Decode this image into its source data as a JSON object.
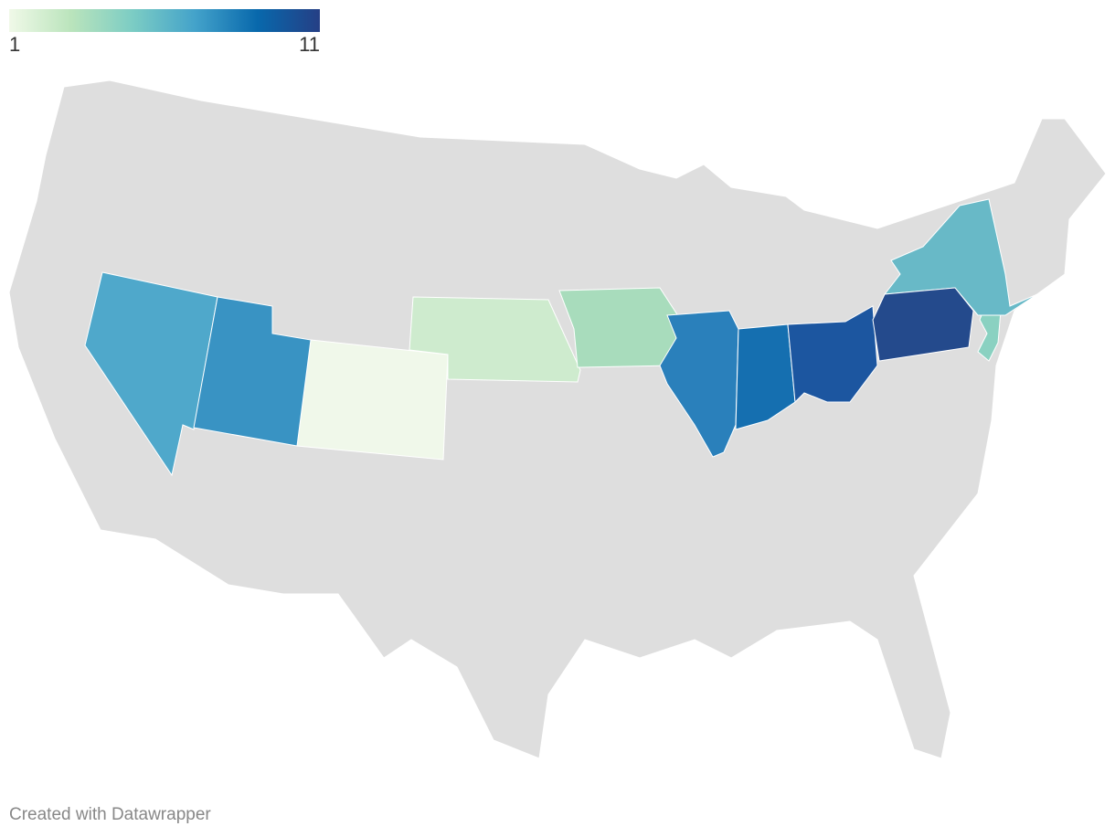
{
  "chart_data": {
    "type": "choropleth",
    "legend_ticks": [
      1,
      11
    ],
    "legend_colors": [
      "#f0f9e8",
      "#bae4bc",
      "#7bccc4",
      "#43a2ca",
      "#0868ac",
      "#253f85"
    ],
    "values": [
      1,
      2,
      3,
      4,
      5,
      6,
      7,
      8,
      9,
      10,
      11
    ],
    "colors": [
      "#f0f8ea",
      "#ceebce",
      "#a8dcbc",
      "#8ad1c1",
      "#68b9c7",
      "#4fa8cb",
      "#3993c3",
      "#2a80bb",
      "#156fb0",
      "#1c56a0",
      "#244a8c"
    ]
  },
  "footer": {
    "credit": "Created with Datawrapper"
  }
}
